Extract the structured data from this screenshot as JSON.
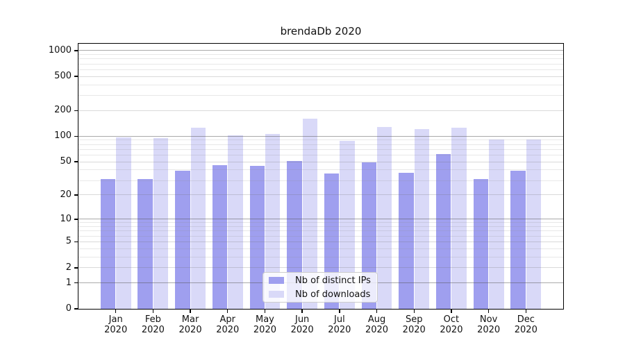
{
  "chart_data": {
    "type": "bar",
    "title": "brendaDb 2020",
    "categories": [
      "Jan",
      "Feb",
      "Mar",
      "Apr",
      "May",
      "Jun",
      "Jul",
      "Aug",
      "Sep",
      "Oct",
      "Nov",
      "Dec"
    ],
    "category_year": "2020",
    "series": [
      {
        "name": "Nb of distinct IPs",
        "color": "#9f9fef",
        "values": [
          31,
          31,
          39,
          46,
          45,
          51,
          36,
          49,
          37,
          62,
          31,
          39
        ]
      },
      {
        "name": "Nb of downloads",
        "color": "#d9d9f8",
        "values": [
          97,
          95,
          126,
          103,
          106,
          160,
          88,
          129,
          122,
          127,
          92,
          91
        ]
      }
    ],
    "y_axis": {
      "scale": "log10(1+v)",
      "tick_labels": [
        0,
        1,
        2,
        5,
        10,
        20,
        50,
        100,
        200,
        500,
        1000
      ],
      "range_top": 1200
    },
    "grid": {
      "major": [
        1,
        10,
        100,
        1000
      ],
      "mid": [
        2,
        5,
        20,
        50,
        200,
        500
      ],
      "minor": [
        3,
        4,
        6,
        7,
        8,
        9,
        30,
        40,
        60,
        70,
        80,
        90,
        300,
        400,
        600,
        700,
        800,
        900
      ],
      "on": true
    },
    "legend_position": "lower-center"
  }
}
